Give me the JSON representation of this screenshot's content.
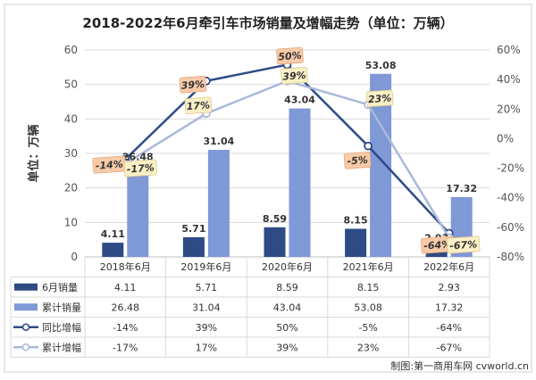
{
  "chart_data": {
    "type": "bar+line",
    "title": "2018-2022年6月牵引车市场销量及增幅走势（单位：万辆）",
    "ylabel": "单位：万辆",
    "categories": [
      "2018年6月",
      "2019年6月",
      "2020年6月",
      "2021年6月",
      "2022年6月"
    ],
    "ylim": [
      0,
      60
    ],
    "y_ticks": [
      0,
      10,
      20,
      30,
      40,
      50,
      60
    ],
    "y2lim": [
      -80,
      60
    ],
    "y2_ticks": [
      "60%",
      "40%",
      "20%",
      "0%",
      "-20%",
      "-40%",
      "-60%",
      "-80%"
    ],
    "bar_series": [
      {
        "name": "6月销量",
        "values": [
          4.11,
          5.71,
          8.59,
          8.15,
          2.93
        ],
        "labels": [
          "4.11",
          "5.71",
          "8.59",
          "8.15",
          "2.93"
        ],
        "color": "#2e4b86"
      },
      {
        "name": "累计销量",
        "values": [
          26.48,
          31.04,
          43.04,
          53.08,
          17.32
        ],
        "labels": [
          "26.48",
          "31.04",
          "43.04",
          "53.08",
          "17.32"
        ],
        "color": "#7f98d6"
      }
    ],
    "line_series": [
      {
        "name": "同比增幅",
        "values": [
          -14,
          39,
          50,
          -5,
          -64
        ],
        "labels": [
          "-14%",
          "39%",
          "50%",
          "-5%",
          "-64%"
        ],
        "color": "#2e4b86",
        "label_bg": "#f7cba8"
      },
      {
        "name": "累计增幅",
        "values": [
          -17,
          17,
          39,
          23,
          -67
        ],
        "labels": [
          "-17%",
          "17%",
          "39%",
          "23%",
          "-67%"
        ],
        "color": "#aab8db",
        "label_bg": "#fbefc6"
      }
    ],
    "legend": "bottom-table"
  },
  "colors": {
    "grid": "#d9d9d9",
    "axis_text": "#555555",
    "title": "#222222",
    "plot_bg": "#ffffff"
  },
  "credit": "制图:第一商用车网 cvworld.cn"
}
